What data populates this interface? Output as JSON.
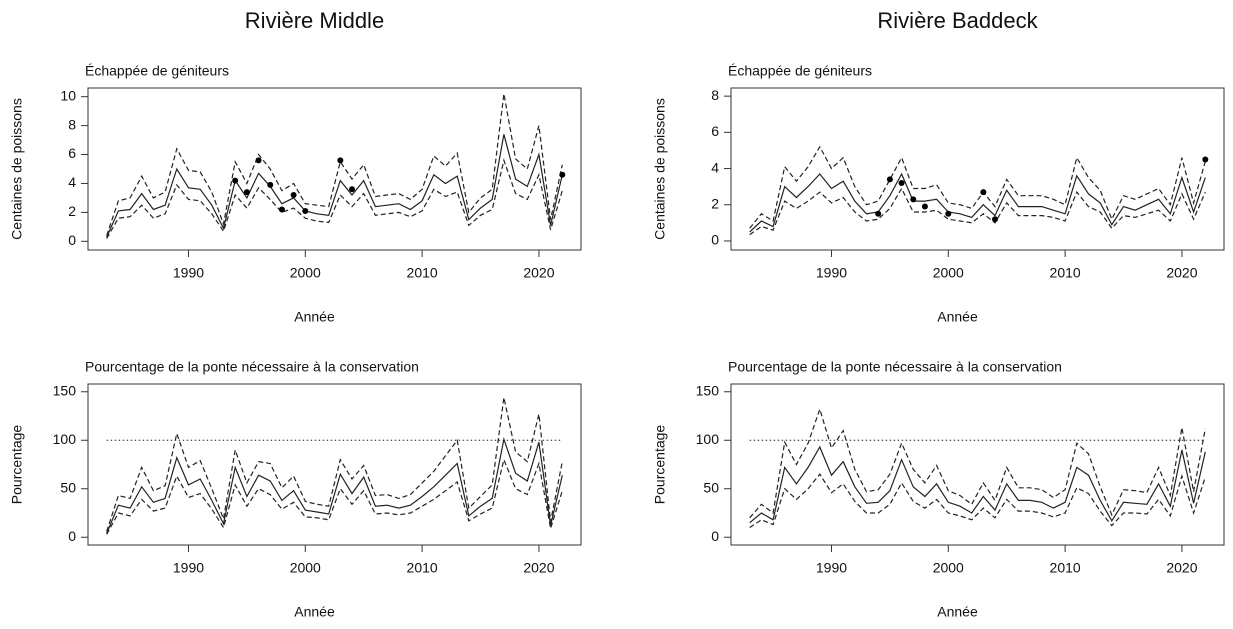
{
  "chart_data": [
    {
      "type": "line",
      "title": "Rivière Middle",
      "subtitle": "Échappée de géniteurs",
      "y_label": "Centaines de poissons",
      "x_label": "Année",
      "x": [
        1983,
        1984,
        1985,
        1986,
        1987,
        1988,
        1989,
        1990,
        1991,
        1992,
        1993,
        1994,
        1995,
        1996,
        1997,
        1998,
        1999,
        2000,
        2001,
        2002,
        2003,
        2004,
        2005,
        2006,
        2007,
        2008,
        2009,
        2010,
        2011,
        2012,
        2013,
        2014,
        2015,
        2016,
        2017,
        2018,
        2019,
        2020,
        2021,
        2022
      ],
      "xlim": [
        1981.4,
        2023.6
      ],
      "xticks": [
        1990,
        2000,
        2010,
        2020
      ],
      "ylim": [
        -0.6,
        10.6
      ],
      "yticks": [
        0,
        2,
        4,
        6,
        8,
        10
      ],
      "series": [
        {
          "style": "solid",
          "color": "#222222",
          "values": [
            0.3,
            2.1,
            2.2,
            3.3,
            2.2,
            2.5,
            5.0,
            3.7,
            3.6,
            2.5,
            0.9,
            4.2,
            3.0,
            4.7,
            3.8,
            2.6,
            3.0,
            2.1,
            1.9,
            1.8,
            4.2,
            3.2,
            4.2,
            2.4,
            2.5,
            2.6,
            2.2,
            2.8,
            4.6,
            4.0,
            4.5,
            1.5,
            2.3,
            2.9,
            7.4,
            4.3,
            3.8,
            6.0,
            1.1,
            4.6
          ]
        },
        {
          "style": "dashed",
          "color": "#222222",
          "values": [
            0.4,
            2.8,
            3.0,
            4.5,
            3.0,
            3.4,
            6.4,
            4.9,
            4.8,
            3.4,
            1.2,
            5.5,
            4.0,
            6.0,
            5.0,
            3.5,
            4.0,
            2.6,
            2.5,
            2.4,
            5.5,
            4.3,
            5.3,
            3.1,
            3.2,
            3.3,
            2.9,
            3.6,
            5.9,
            5.2,
            6.1,
            2.0,
            3.0,
            3.6,
            10.2,
            5.7,
            5.0,
            8.0,
            1.5,
            5.3
          ]
        },
        {
          "style": "dashed",
          "color": "#222222",
          "values": [
            0.2,
            1.6,
            1.7,
            2.5,
            1.6,
            1.9,
            3.9,
            2.9,
            2.8,
            1.9,
            0.7,
            3.2,
            2.3,
            3.7,
            2.9,
            2.0,
            2.3,
            1.6,
            1.4,
            1.3,
            3.2,
            2.4,
            3.3,
            1.8,
            1.9,
            2.0,
            1.7,
            2.1,
            3.6,
            3.1,
            3.4,
            1.1,
            1.8,
            2.2,
            5.6,
            3.3,
            2.9,
            4.6,
            0.8,
            3.5
          ]
        },
        {
          "style": "points",
          "color": "#000000",
          "x": [
            1994,
            1995,
            1996,
            1997,
            1998,
            1999,
            2000,
            2003,
            2004,
            2022
          ],
          "values": [
            4.2,
            3.4,
            5.6,
            3.9,
            2.2,
            3.2,
            2.1,
            5.6,
            3.6,
            4.6
          ]
        }
      ]
    },
    {
      "type": "line",
      "title": "Rivière Baddeck",
      "subtitle": "Échappée de géniteurs",
      "y_label": "Centaines de poissons",
      "x_label": "Année",
      "x": [
        1983,
        1984,
        1985,
        1986,
        1987,
        1988,
        1989,
        1990,
        1991,
        1992,
        1993,
        1994,
        1995,
        1996,
        1997,
        1998,
        1999,
        2000,
        2001,
        2002,
        2003,
        2004,
        2005,
        2006,
        2007,
        2008,
        2009,
        2010,
        2011,
        2012,
        2013,
        2014,
        2015,
        2016,
        2017,
        2018,
        2019,
        2020,
        2021,
        2022
      ],
      "xlim": [
        1981.4,
        2023.6
      ],
      "xticks": [
        1990,
        2000,
        2010,
        2020
      ],
      "ylim": [
        -0.5,
        8.45
      ],
      "yticks": [
        0,
        2,
        4,
        6,
        8
      ],
      "series": [
        {
          "style": "solid",
          "color": "#222222",
          "values": [
            0.5,
            1.1,
            0.8,
            3.0,
            2.4,
            3.0,
            3.7,
            2.9,
            3.3,
            2.2,
            1.5,
            1.6,
            2.5,
            3.7,
            2.2,
            2.2,
            2.3,
            1.6,
            1.5,
            1.3,
            2.0,
            1.4,
            2.8,
            1.9,
            1.9,
            1.9,
            1.7,
            1.5,
            3.6,
            2.6,
            2.1,
            0.9,
            1.9,
            1.7,
            2.0,
            2.3,
            1.5,
            3.5,
            1.6,
            3.5
          ]
        },
        {
          "style": "dashed",
          "color": "#222222",
          "values": [
            0.7,
            1.5,
            1.1,
            4.1,
            3.3,
            4.1,
            5.2,
            4.0,
            4.6,
            3.0,
            2.0,
            2.2,
            3.4,
            4.6,
            2.9,
            2.9,
            3.1,
            2.1,
            2.0,
            1.8,
            2.7,
            1.9,
            3.4,
            2.5,
            2.5,
            2.5,
            2.3,
            2.0,
            4.6,
            3.5,
            2.8,
            1.2,
            2.5,
            2.3,
            2.6,
            2.9,
            2.0,
            4.6,
            2.1,
            4.4
          ]
        },
        {
          "style": "dashed",
          "color": "#222222",
          "values": [
            0.35,
            0.8,
            0.6,
            2.2,
            1.8,
            2.2,
            2.7,
            2.1,
            2.4,
            1.6,
            1.1,
            1.2,
            1.8,
            2.9,
            1.6,
            1.6,
            1.7,
            1.2,
            1.1,
            1.0,
            1.5,
            1.0,
            2.1,
            1.4,
            1.4,
            1.4,
            1.3,
            1.1,
            2.7,
            1.9,
            1.6,
            0.7,
            1.4,
            1.3,
            1.5,
            1.7,
            1.1,
            2.6,
            1.2,
            2.7
          ]
        },
        {
          "style": "points",
          "color": "#000000",
          "x": [
            1994,
            1995,
            1996,
            1997,
            1998,
            2000,
            2003,
            2004,
            2022
          ],
          "values": [
            1.5,
            3.4,
            3.2,
            2.3,
            1.9,
            1.5,
            2.7,
            1.2,
            4.5
          ]
        }
      ]
    },
    {
      "type": "line",
      "subtitle": "Pourcentage de la ponte nécessaire à la conservation",
      "y_label": "Pourcentage",
      "x_label": "Année",
      "x": [
        1983,
        1984,
        1985,
        1986,
        1987,
        1988,
        1989,
        1990,
        1991,
        1992,
        1993,
        1994,
        1995,
        1996,
        1997,
        1998,
        1999,
        2000,
        2001,
        2002,
        2003,
        2004,
        2005,
        2006,
        2007,
        2008,
        2009,
        2010,
        2011,
        2012,
        2013,
        2014,
        2015,
        2016,
        2017,
        2018,
        2019,
        2020,
        2021,
        2022
      ],
      "xlim": [
        1981.4,
        2023.6
      ],
      "xticks": [
        1990,
        2000,
        2010,
        2020
      ],
      "ylim": [
        -8,
        158
      ],
      "yticks": [
        0,
        50,
        100,
        150
      ],
      "reference_line": 100,
      "series": [
        {
          "style": "solid",
          "color": "#222222",
          "values": [
            4,
            33,
            30,
            52,
            36,
            40,
            82,
            54,
            60,
            38,
            14,
            72,
            42,
            64,
            58,
            38,
            48,
            28,
            26,
            24,
            65,
            45,
            62,
            32,
            33,
            30,
            33,
            42,
            52,
            64,
            76,
            22,
            32,
            40,
            101,
            66,
            58,
            98,
            12,
            64
          ]
        },
        {
          "style": "dashed",
          "color": "#222222",
          "values": [
            6,
            43,
            40,
            72,
            48,
            53,
            107,
            72,
            79,
            50,
            19,
            90,
            56,
            78,
            76,
            51,
            63,
            37,
            34,
            32,
            80,
            60,
            74,
            43,
            44,
            40,
            44,
            56,
            68,
            84,
            100,
            30,
            42,
            54,
            144,
            88,
            78,
            127,
            16,
            78
          ]
        },
        {
          "style": "dashed",
          "color": "#222222",
          "values": [
            3,
            25,
            22,
            39,
            27,
            30,
            63,
            41,
            45,
            29,
            10,
            54,
            32,
            50,
            44,
            29,
            36,
            21,
            20,
            18,
            50,
            34,
            48,
            24,
            25,
            23,
            25,
            32,
            39,
            48,
            57,
            17,
            24,
            30,
            80,
            50,
            44,
            76,
            9,
            48
          ]
        }
      ]
    },
    {
      "type": "line",
      "subtitle": "Pourcentage de la ponte nécessaire à la conservation",
      "y_label": "Pourcentage",
      "x_label": "Année",
      "x": [
        1983,
        1984,
        1985,
        1986,
        1987,
        1988,
        1989,
        1990,
        1991,
        1992,
        1993,
        1994,
        1995,
        1996,
        1997,
        1998,
        1999,
        2000,
        2001,
        2002,
        2003,
        2004,
        2005,
        2006,
        2007,
        2008,
        2009,
        2010,
        2011,
        2012,
        2013,
        2014,
        2015,
        2016,
        2017,
        2018,
        2019,
        2020,
        2021,
        2022
      ],
      "xlim": [
        1981.4,
        2023.6
      ],
      "xticks": [
        1990,
        2000,
        2010,
        2020
      ],
      "ylim": [
        -8,
        158
      ],
      "yticks": [
        0,
        50,
        100,
        150
      ],
      "reference_line": 100,
      "series": [
        {
          "style": "solid",
          "color": "#222222",
          "values": [
            15,
            25,
            18,
            72,
            55,
            72,
            93,
            64,
            78,
            52,
            35,
            36,
            48,
            80,
            52,
            42,
            55,
            36,
            32,
            25,
            42,
            28,
            55,
            38,
            38,
            36,
            30,
            36,
            72,
            64,
            38,
            17,
            36,
            35,
            34,
            55,
            32,
            90,
            35,
            88
          ]
        },
        {
          "style": "dashed",
          "color": "#222222",
          "values": [
            20,
            34,
            25,
            98,
            75,
            97,
            132,
            92,
            110,
            70,
            47,
            49,
            65,
            97,
            70,
            56,
            74,
            48,
            43,
            34,
            56,
            38,
            72,
            51,
            51,
            49,
            41,
            49,
            97,
            86,
            52,
            23,
            49,
            48,
            46,
            72,
            43,
            113,
            47,
            112
          ]
        },
        {
          "style": "dashed",
          "color": "#222222",
          "values": [
            10,
            18,
            13,
            50,
            39,
            50,
            65,
            46,
            55,
            37,
            25,
            25,
            34,
            56,
            37,
            30,
            39,
            25,
            22,
            18,
            30,
            20,
            39,
            27,
            27,
            25,
            21,
            25,
            51,
            45,
            27,
            12,
            25,
            25,
            24,
            39,
            22,
            63,
            25,
            62
          ]
        }
      ]
    }
  ]
}
